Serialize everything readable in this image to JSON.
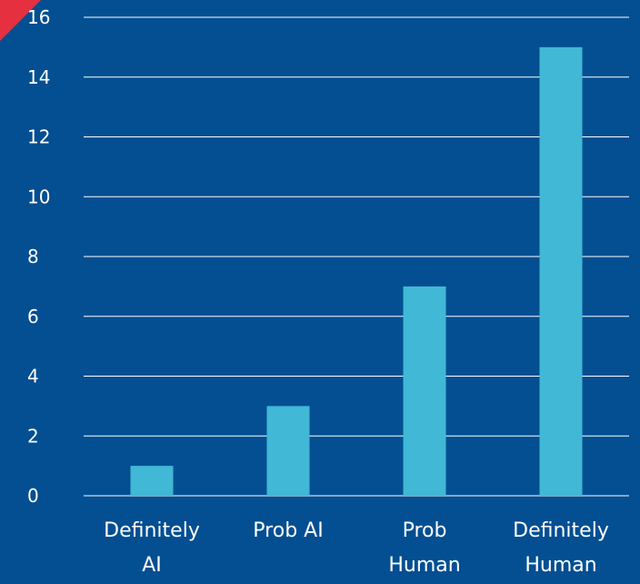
{
  "chart_data": {
    "type": "bar",
    "title": "",
    "xlabel": "",
    "ylabel": "",
    "categories": [
      [
        "Definitely",
        "AI"
      ],
      [
        "Prob AI"
      ],
      [
        "Prob",
        "Human"
      ],
      [
        "Definitely",
        "Human"
      ]
    ],
    "values": [
      1,
      3,
      7,
      15
    ],
    "ylim": [
      0,
      16
    ],
    "yticks": [
      "0",
      "2",
      "4",
      "6",
      "8",
      "10",
      "12",
      "14",
      "16"
    ],
    "grid": true,
    "legend": "none",
    "colors": {
      "background": "#034f92",
      "bar": "#41b8d5",
      "grid": "#ffffff",
      "text": "#ffffff",
      "corner_accent": "#e5303f"
    }
  }
}
